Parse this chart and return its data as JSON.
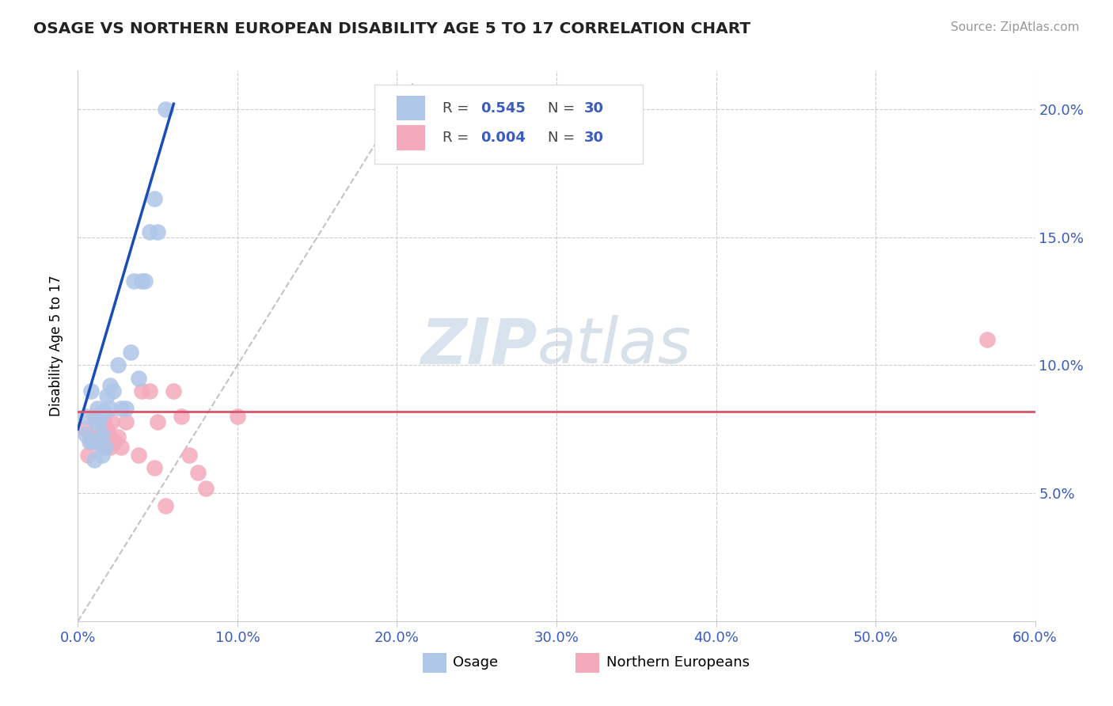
{
  "title": "OSAGE VS NORTHERN EUROPEAN DISABILITY AGE 5 TO 17 CORRELATION CHART",
  "source": "Source: ZipAtlas.com",
  "ylabel_label": "Disability Age 5 to 17",
  "xmin": 0.0,
  "xmax": 0.6,
  "ymin": 0.0,
  "ymax": 0.215,
  "ytick_vals": [
    0.05,
    0.1,
    0.15,
    0.2
  ],
  "xtick_vals": [
    0.0,
    0.1,
    0.2,
    0.3,
    0.4,
    0.5,
    0.6
  ],
  "legend_blue_r": "0.545",
  "legend_blue_n": "30",
  "legend_pink_r": "0.004",
  "legend_pink_n": "30",
  "legend_label_blue": "Osage",
  "legend_label_pink": "Northern Europeans",
  "watermark_zip": "ZIP",
  "watermark_atlas": "atlas",
  "blue_color": "#aec6e8",
  "pink_color": "#f4aabc",
  "blue_line_color": "#1a4db5",
  "pink_line_color": "#d9536a",
  "ref_line_color": "#aaaaaa",
  "osage_x": [
    0.005,
    0.005,
    0.007,
    0.008,
    0.01,
    0.01,
    0.011,
    0.012,
    0.013,
    0.013,
    0.015,
    0.015,
    0.016,
    0.017,
    0.018,
    0.02,
    0.02,
    0.022,
    0.025,
    0.027,
    0.03,
    0.033,
    0.035,
    0.038,
    0.04,
    0.042,
    0.045,
    0.048,
    0.05,
    0.055
  ],
  "osage_y": [
    0.08,
    0.073,
    0.07,
    0.09,
    0.063,
    0.07,
    0.078,
    0.083,
    0.071,
    0.078,
    0.065,
    0.073,
    0.082,
    0.068,
    0.088,
    0.083,
    0.092,
    0.09,
    0.1,
    0.083,
    0.083,
    0.105,
    0.133,
    0.095,
    0.133,
    0.133,
    0.152,
    0.165,
    0.152,
    0.2
  ],
  "northern_x": [
    0.005,
    0.006,
    0.008,
    0.01,
    0.01,
    0.012,
    0.013,
    0.015,
    0.016,
    0.018,
    0.019,
    0.02,
    0.021,
    0.023,
    0.025,
    0.027,
    0.03,
    0.038,
    0.04,
    0.045,
    0.048,
    0.05,
    0.055,
    0.06,
    0.065,
    0.07,
    0.075,
    0.08,
    0.1,
    0.57
  ],
  "northern_y": [
    0.075,
    0.065,
    0.07,
    0.072,
    0.08,
    0.072,
    0.07,
    0.068,
    0.078,
    0.075,
    0.073,
    0.068,
    0.078,
    0.07,
    0.072,
    0.068,
    0.078,
    0.065,
    0.09,
    0.09,
    0.06,
    0.078,
    0.045,
    0.09,
    0.08,
    0.065,
    0.058,
    0.052,
    0.08,
    0.11
  ]
}
